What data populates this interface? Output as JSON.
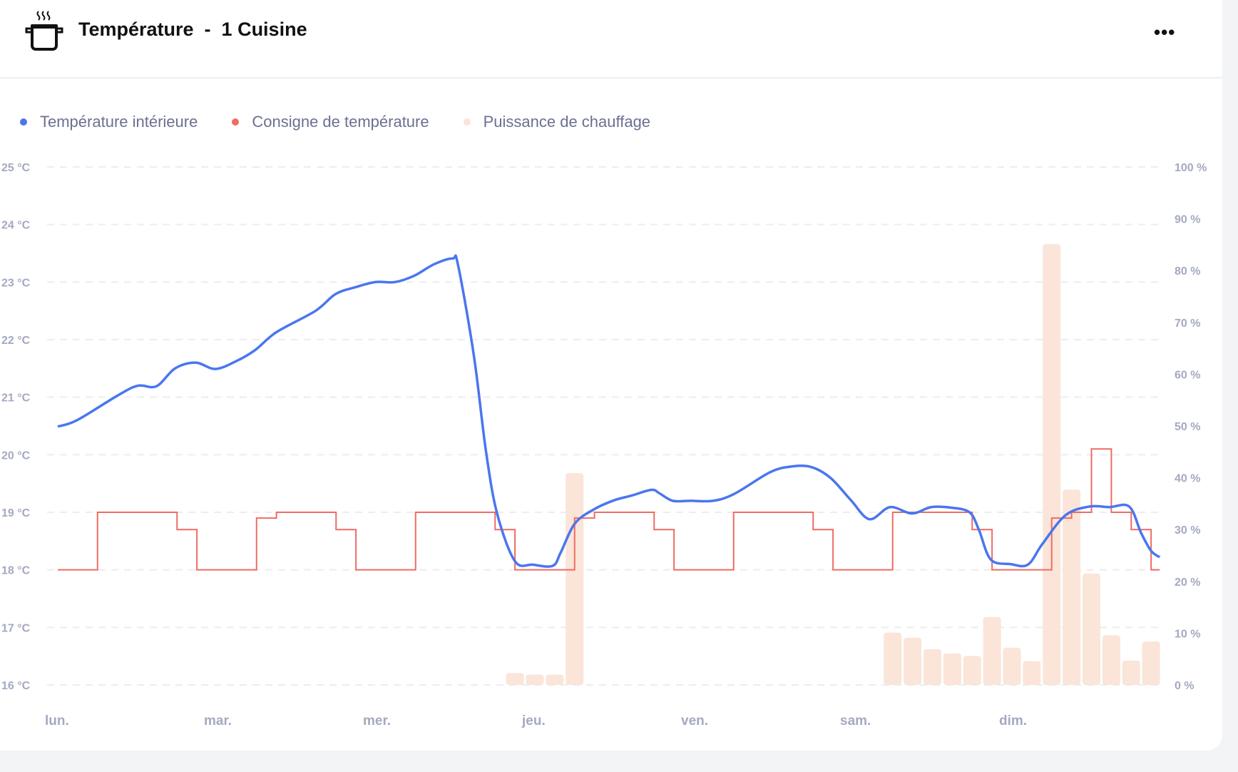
{
  "header": {
    "title": "Température  -  1 Cuisine",
    "more_label": "•••",
    "icon": "cooking-pot-icon"
  },
  "colors": {
    "indoor": "#4a76ee",
    "setpoint": "#ee6c64",
    "power": "#fae5d8",
    "grid": "#ececf2",
    "axis_text": "#a4a9c1"
  },
  "chart_data": {
    "type": "line+bar",
    "title": "Température - 1 Cuisine",
    "legend": [
      "Température intérieure",
      "Consigne de température",
      "Puissance de chauffage"
    ],
    "legend_position": "top-left",
    "x_unit": "hours since Monday 00:00",
    "xlim": [
      0,
      168
    ],
    "x_ticks": [
      {
        "h": 0,
        "label": "lun."
      },
      {
        "h": 24,
        "label": "mar."
      },
      {
        "h": 48,
        "label": "mer."
      },
      {
        "h": 72,
        "label": "jeu."
      },
      {
        "h": 96,
        "label": "ven."
      },
      {
        "h": 120,
        "label": "sam."
      },
      {
        "h": 144,
        "label": "dim."
      }
    ],
    "y_left": {
      "ylim": [
        16,
        25
      ],
      "ticks": [
        "16 °C",
        "17 °C",
        "18 °C",
        "19 °C",
        "20 °C",
        "21 °C",
        "22 °C",
        "23 °C",
        "24 °C",
        "25 °C"
      ]
    },
    "y_right": {
      "ylim": [
        0,
        100
      ],
      "ticks": [
        "0 %",
        "10 %",
        "20 %",
        "30 %",
        "40 %",
        "50 %",
        "60 %",
        "70 %",
        "80 %",
        "90 %",
        "100 %"
      ]
    },
    "grid": true,
    "series": [
      {
        "name": "Température intérieure",
        "type": "line",
        "axis": "left",
        "x": [
          0,
          2.9,
          9.2,
          12.1,
          14.9,
          17.7,
          20.8,
          23.8,
          27.0,
          29.8,
          33.0,
          38.9,
          41.9,
          44.9,
          47.9,
          50.9,
          53.8,
          56.8,
          59.6,
          60.4,
          62.8,
          64.6,
          66.3,
          69.0,
          71.7,
          74.7,
          75.9,
          78.0,
          80.9,
          84.0,
          86.6,
          89.6,
          90.8,
          92.8,
          95.5,
          98.9,
          102.1,
          107.4,
          110.4,
          113.6,
          116.6,
          119.7,
          122.5,
          125.6,
          128.9,
          131.8,
          134.8,
          137.6,
          139.0,
          140.8,
          143.8,
          146.4,
          148.6,
          152.1,
          155.7,
          158.7,
          161.7,
          163.5,
          165.0,
          166.3
        ],
        "y": [
          20.49,
          20.6,
          21.04,
          21.2,
          21.19,
          21.5,
          21.6,
          21.49,
          21.63,
          21.82,
          22.13,
          22.5,
          22.79,
          22.91,
          23.0,
          23.0,
          23.11,
          23.31,
          23.41,
          23.3,
          21.72,
          20.08,
          18.98,
          18.15,
          18.09,
          18.07,
          18.3,
          18.8,
          19.05,
          19.21,
          19.29,
          19.39,
          19.33,
          19.2,
          19.2,
          19.2,
          19.32,
          19.69,
          19.79,
          19.79,
          19.6,
          19.21,
          18.88,
          19.09,
          18.98,
          19.09,
          19.08,
          19.0,
          18.7,
          18.18,
          18.1,
          18.09,
          18.45,
          18.95,
          19.1,
          19.09,
          19.1,
          18.64,
          18.33,
          18.22
        ]
      },
      {
        "name": "Consigne de température",
        "type": "step",
        "axis": "left",
        "steps": [
          [
            0,
            6,
            18
          ],
          [
            6,
            18,
            19
          ],
          [
            18,
            21,
            18.7
          ],
          [
            21,
            30,
            18
          ],
          [
            30,
            33,
            18.9
          ],
          [
            33,
            42,
            19
          ],
          [
            42,
            45,
            18.7
          ],
          [
            45,
            54,
            18
          ],
          [
            54,
            66,
            19
          ],
          [
            66,
            69,
            18.7
          ],
          [
            69,
            78,
            18
          ],
          [
            78,
            81,
            18.9
          ],
          [
            81,
            90,
            19
          ],
          [
            90,
            93,
            18.7
          ],
          [
            93,
            102,
            18
          ],
          [
            102,
            114,
            19
          ],
          [
            114,
            117,
            18.7
          ],
          [
            117,
            126,
            18
          ],
          [
            126,
            138,
            19
          ],
          [
            138,
            141,
            18.7
          ],
          [
            141,
            150,
            18
          ],
          [
            150,
            153,
            18.9
          ],
          [
            153,
            156,
            19
          ],
          [
            156,
            159,
            20.1
          ],
          [
            159,
            162,
            19
          ],
          [
            162,
            165,
            18.7
          ],
          [
            165,
            166.3,
            18
          ]
        ]
      },
      {
        "name": "Puissance de chauffage",
        "type": "bar",
        "axis": "right",
        "x": [
          69,
          72,
          75,
          78,
          126,
          129,
          132,
          135,
          138,
          141,
          144,
          147,
          150,
          153,
          156,
          159,
          162,
          165
        ],
        "values": [
          2.3,
          2.0,
          2.0,
          40.9,
          10.1,
          9.1,
          6.9,
          6.1,
          5.6,
          13.1,
          7.2,
          4.6,
          85.1,
          37.7,
          21.5,
          9.6,
          4.7,
          8.4
        ]
      }
    ]
  }
}
